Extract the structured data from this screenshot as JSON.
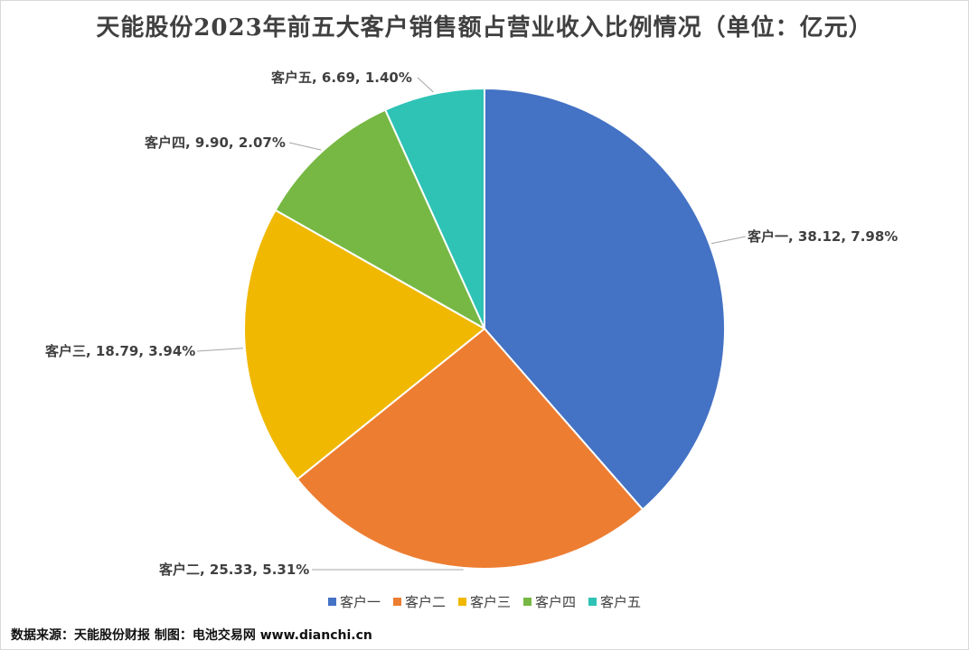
{
  "chart_data": {
    "type": "pie",
    "title": "天能股份2023年前五大客户销售额占营业收入比例情况（单位：亿元）",
    "categories": [
      "客户一",
      "客户二",
      "客户三",
      "客户四",
      "客户五"
    ],
    "values": [
      38.12,
      25.33,
      18.79,
      9.9,
      6.69
    ],
    "data_labels": [
      "客户一, 38.12, 7.98%",
      "客户二, 25.33, 5.31%",
      "客户三, 18.79, 3.94%",
      "客户四, 9.90, 2.07%",
      "客户五, 6.69, 1.40%"
    ],
    "colors": [
      "#4472c4",
      "#ed7d31",
      "#f0b800",
      "#76b843",
      "#2ec3b5"
    ],
    "legend": {
      "placement": "bottom",
      "entries": [
        "客户一",
        "客户二",
        "客户三",
        "客户四",
        "客户五"
      ]
    }
  },
  "source_note": "数据来源：天能股份财报  制图：电池交易网 www.dianchi.cn"
}
